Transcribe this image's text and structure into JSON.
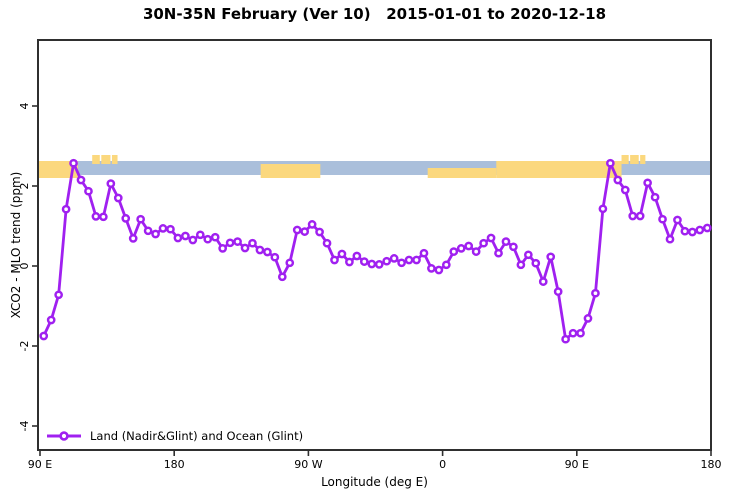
{
  "chart_data": {
    "type": "line",
    "title": "30N-35N February (Ver 10)   2015-01-01 to 2020-12-18",
    "xlabel": "Longitude (deg E)",
    "ylabel": "XCO2 - MLO trend (ppm)",
    "x_axis": {
      "tick_labels": [
        "90 E",
        "180",
        "90 W",
        "0",
        "90 E",
        "180"
      ],
      "tick_offsets_deg": [
        0,
        90,
        180,
        270,
        360,
        450
      ],
      "range_deg": [
        0,
        450
      ],
      "start_longitude": "90 E",
      "wrap": "eastward through 180, 90W, 0, 90E to 180"
    },
    "y_axis": {
      "ticks": [
        -4,
        -2,
        0,
        2,
        4
      ],
      "tick_labels": [
        "-4",
        "-2",
        "0",
        "2",
        "4"
      ],
      "range": [
        -4.6,
        5.6
      ]
    },
    "series": [
      {
        "name": "Land (Nadir&Glint) and Ocean (Glint)",
        "color": "#a020f0",
        "marker": "open-circle",
        "x_offsets_deg": [
          2.5,
          7.5,
          12.5,
          17.5,
          22.5,
          27.5,
          32.5,
          37.5,
          42.5,
          47.5,
          52.5,
          57.5,
          62.5,
          67.5,
          72.5,
          77.5,
          82.5,
          87.5,
          92.5,
          97.5,
          102.5,
          107.5,
          112.5,
          117.5,
          122.5,
          127.5,
          132.5,
          137.5,
          142.5,
          147.5,
          152.5,
          157.5,
          162.5,
          167.5,
          172.5,
          177.5,
          182.5,
          187.5,
          192.5,
          197.5,
          202.5,
          207.5,
          212.5,
          217.5,
          222.5,
          227.5,
          232.5,
          237.5,
          242.5,
          247.5,
          252.5,
          257.5,
          262.5,
          267.5,
          272.5,
          277.5,
          282.5,
          287.5,
          292.5,
          297.5,
          302.5,
          307.5,
          312.5,
          317.5,
          322.5,
          327.5,
          332.5,
          337.5,
          342.5,
          347.5,
          352.5,
          357.5,
          362.5,
          367.5,
          372.5,
          377.5,
          382.5,
          387.5,
          392.5,
          397.5,
          402.5,
          407.5,
          412.5,
          417.5,
          422.5,
          427.5,
          432.5,
          437.5,
          442.5,
          447.5
        ],
        "values": [
          -1.75,
          -1.35,
          -0.72,
          1.42,
          2.57,
          2.15,
          1.87,
          1.24,
          1.23,
          2.06,
          1.7,
          1.19,
          0.69,
          1.17,
          0.88,
          0.8,
          0.94,
          0.92,
          0.7,
          0.75,
          0.65,
          0.78,
          0.67,
          0.72,
          0.44,
          0.58,
          0.61,
          0.45,
          0.57,
          0.4,
          0.35,
          0.22,
          -0.27,
          0.08,
          0.9,
          0.86,
          1.04,
          0.85,
          0.57,
          0.15,
          0.3,
          0.1,
          0.25,
          0.11,
          0.05,
          0.04,
          0.12,
          0.19,
          0.08,
          0.15,
          0.15,
          0.32,
          -0.06,
          -0.1,
          0.03,
          0.36,
          0.44,
          0.5,
          0.36,
          0.57,
          0.7,
          0.32,
          0.61,
          0.48,
          0.03,
          0.28,
          0.07,
          -0.39,
          0.23,
          -0.64,
          -1.83,
          -1.68,
          -1.68,
          -1.31,
          -0.68,
          1.43,
          2.57,
          2.15,
          1.9,
          1.25,
          1.25,
          2.08,
          1.72,
          1.17,
          0.67,
          1.15,
          0.87,
          0.85,
          0.9,
          0.95
        ]
      }
    ],
    "map_strip": {
      "description": "horizontal land/ocean strip drawn across the plot near y = 2.2 to 2.6 ppm",
      "ocean_color": "#aabfdb",
      "land_color": "#fbd87e",
      "ocean_range_deg": [
        -1,
        450
      ],
      "land_segments": [
        {
          "start_deg": -1,
          "end_deg": 25.5,
          "band": "full"
        },
        {
          "start_deg": 35,
          "end_deg": 52,
          "band": "top"
        },
        {
          "start_deg": 148,
          "end_deg": 188,
          "band": "low"
        },
        {
          "start_deg": 260,
          "end_deg": 306,
          "band": "bottom"
        },
        {
          "start_deg": 306,
          "end_deg": 390,
          "band": "full"
        },
        {
          "start_deg": 390,
          "end_deg": 406,
          "band": "top"
        }
      ]
    },
    "legend": {
      "position": "bottom-left",
      "entries": [
        "Land (Nadir&Glint) and Ocean (Glint)"
      ]
    },
    "grid": "off",
    "colors": {
      "line": "#a020f0",
      "marker_fill": "#ffffff",
      "axis": "#2f2f2f",
      "text": "#000000"
    }
  }
}
